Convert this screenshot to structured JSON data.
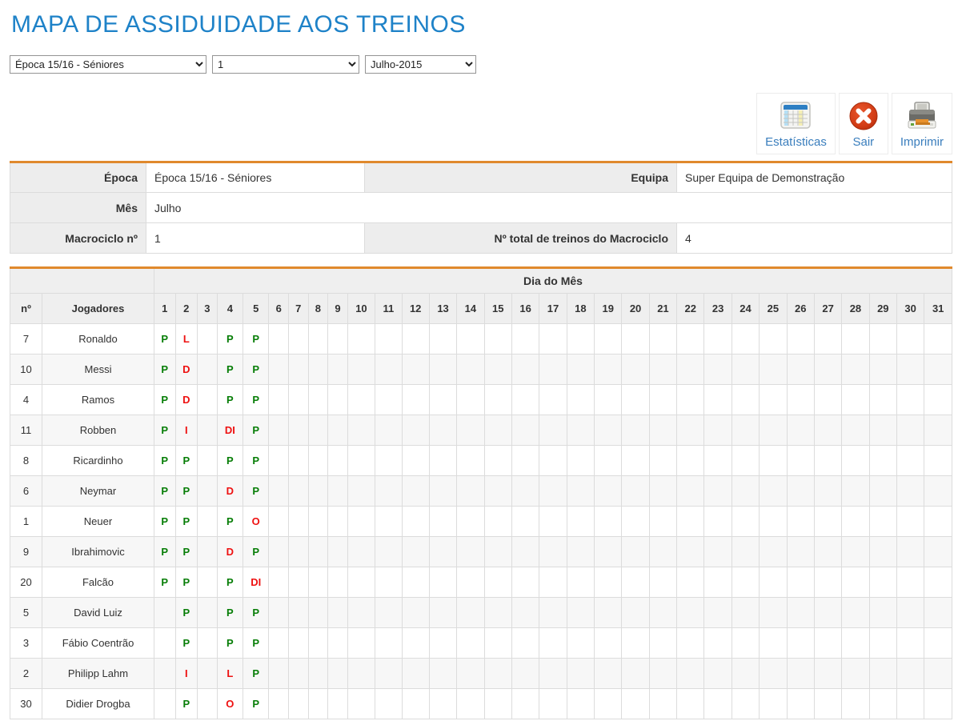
{
  "page": {
    "title": "MAPA DE ASSIDUIDADE AOS TREINOS"
  },
  "filters": {
    "season": {
      "value": "Época 15/16 - Séniores"
    },
    "macrocycle": {
      "value": "1"
    },
    "month": {
      "value": "Julho-2015"
    }
  },
  "toolbar": {
    "stats_label": "Estatísticas",
    "exit_label": "Sair",
    "print_label": "Imprimir"
  },
  "info": {
    "epoca_label": "Época",
    "epoca_value": "Época 15/16 - Séniores",
    "equipa_label": "Equipa",
    "equipa_value": "Super Equipa de Demonstração",
    "mes_label": "Mês",
    "mes_value": "Julho",
    "macrociclo_label": "Macrociclo nº",
    "macrociclo_value": "1",
    "total_treinos_label": "Nº total de treinos do Macrociclo",
    "total_treinos_value": "4"
  },
  "attendance": {
    "group_header": "Dia do Mês",
    "col_no": "nº",
    "col_players": "Jogadores",
    "days": [
      "1",
      "2",
      "3",
      "4",
      "5",
      "6",
      "7",
      "8",
      "9",
      "10",
      "11",
      "12",
      "13",
      "14",
      "15",
      "16",
      "17",
      "18",
      "19",
      "20",
      "21",
      "22",
      "23",
      "24",
      "25",
      "26",
      "27",
      "28",
      "29",
      "30",
      "31"
    ],
    "colors": {
      "present": "#067d06",
      "absent": "#ee1111"
    },
    "present_code": "P",
    "players": [
      {
        "number": "7",
        "name": "Ronaldo",
        "marks": {
          "1": "P",
          "2": "L",
          "4": "P",
          "5": "P"
        }
      },
      {
        "number": "10",
        "name": "Messi",
        "marks": {
          "1": "P",
          "2": "D",
          "4": "P",
          "5": "P"
        }
      },
      {
        "number": "4",
        "name": "Ramos",
        "marks": {
          "1": "P",
          "2": "D",
          "4": "P",
          "5": "P"
        }
      },
      {
        "number": "11",
        "name": "Robben",
        "marks": {
          "1": "P",
          "2": "I",
          "4": "DI",
          "5": "P"
        }
      },
      {
        "number": "8",
        "name": "Ricardinho",
        "marks": {
          "1": "P",
          "2": "P",
          "4": "P",
          "5": "P"
        }
      },
      {
        "number": "6",
        "name": "Neymar",
        "marks": {
          "1": "P",
          "2": "P",
          "4": "D",
          "5": "P"
        }
      },
      {
        "number": "1",
        "name": "Neuer",
        "marks": {
          "1": "P",
          "2": "P",
          "4": "P",
          "5": "O"
        }
      },
      {
        "number": "9",
        "name": "Ibrahimovic",
        "marks": {
          "1": "P",
          "2": "P",
          "4": "D",
          "5": "P"
        }
      },
      {
        "number": "20",
        "name": "Falcão",
        "marks": {
          "1": "P",
          "2": "P",
          "4": "P",
          "5": "DI"
        }
      },
      {
        "number": "5",
        "name": "David Luiz",
        "marks": {
          "2": "P",
          "4": "P",
          "5": "P"
        }
      },
      {
        "number": "3",
        "name": "Fábio Coentrão",
        "marks": {
          "2": "P",
          "4": "P",
          "5": "P"
        }
      },
      {
        "number": "2",
        "name": "Philipp Lahm",
        "marks": {
          "2": "I",
          "4": "L",
          "5": "P"
        }
      },
      {
        "number": "30",
        "name": "Didier Drogba",
        "marks": {
          "2": "P",
          "4": "O",
          "5": "P"
        }
      }
    ]
  }
}
